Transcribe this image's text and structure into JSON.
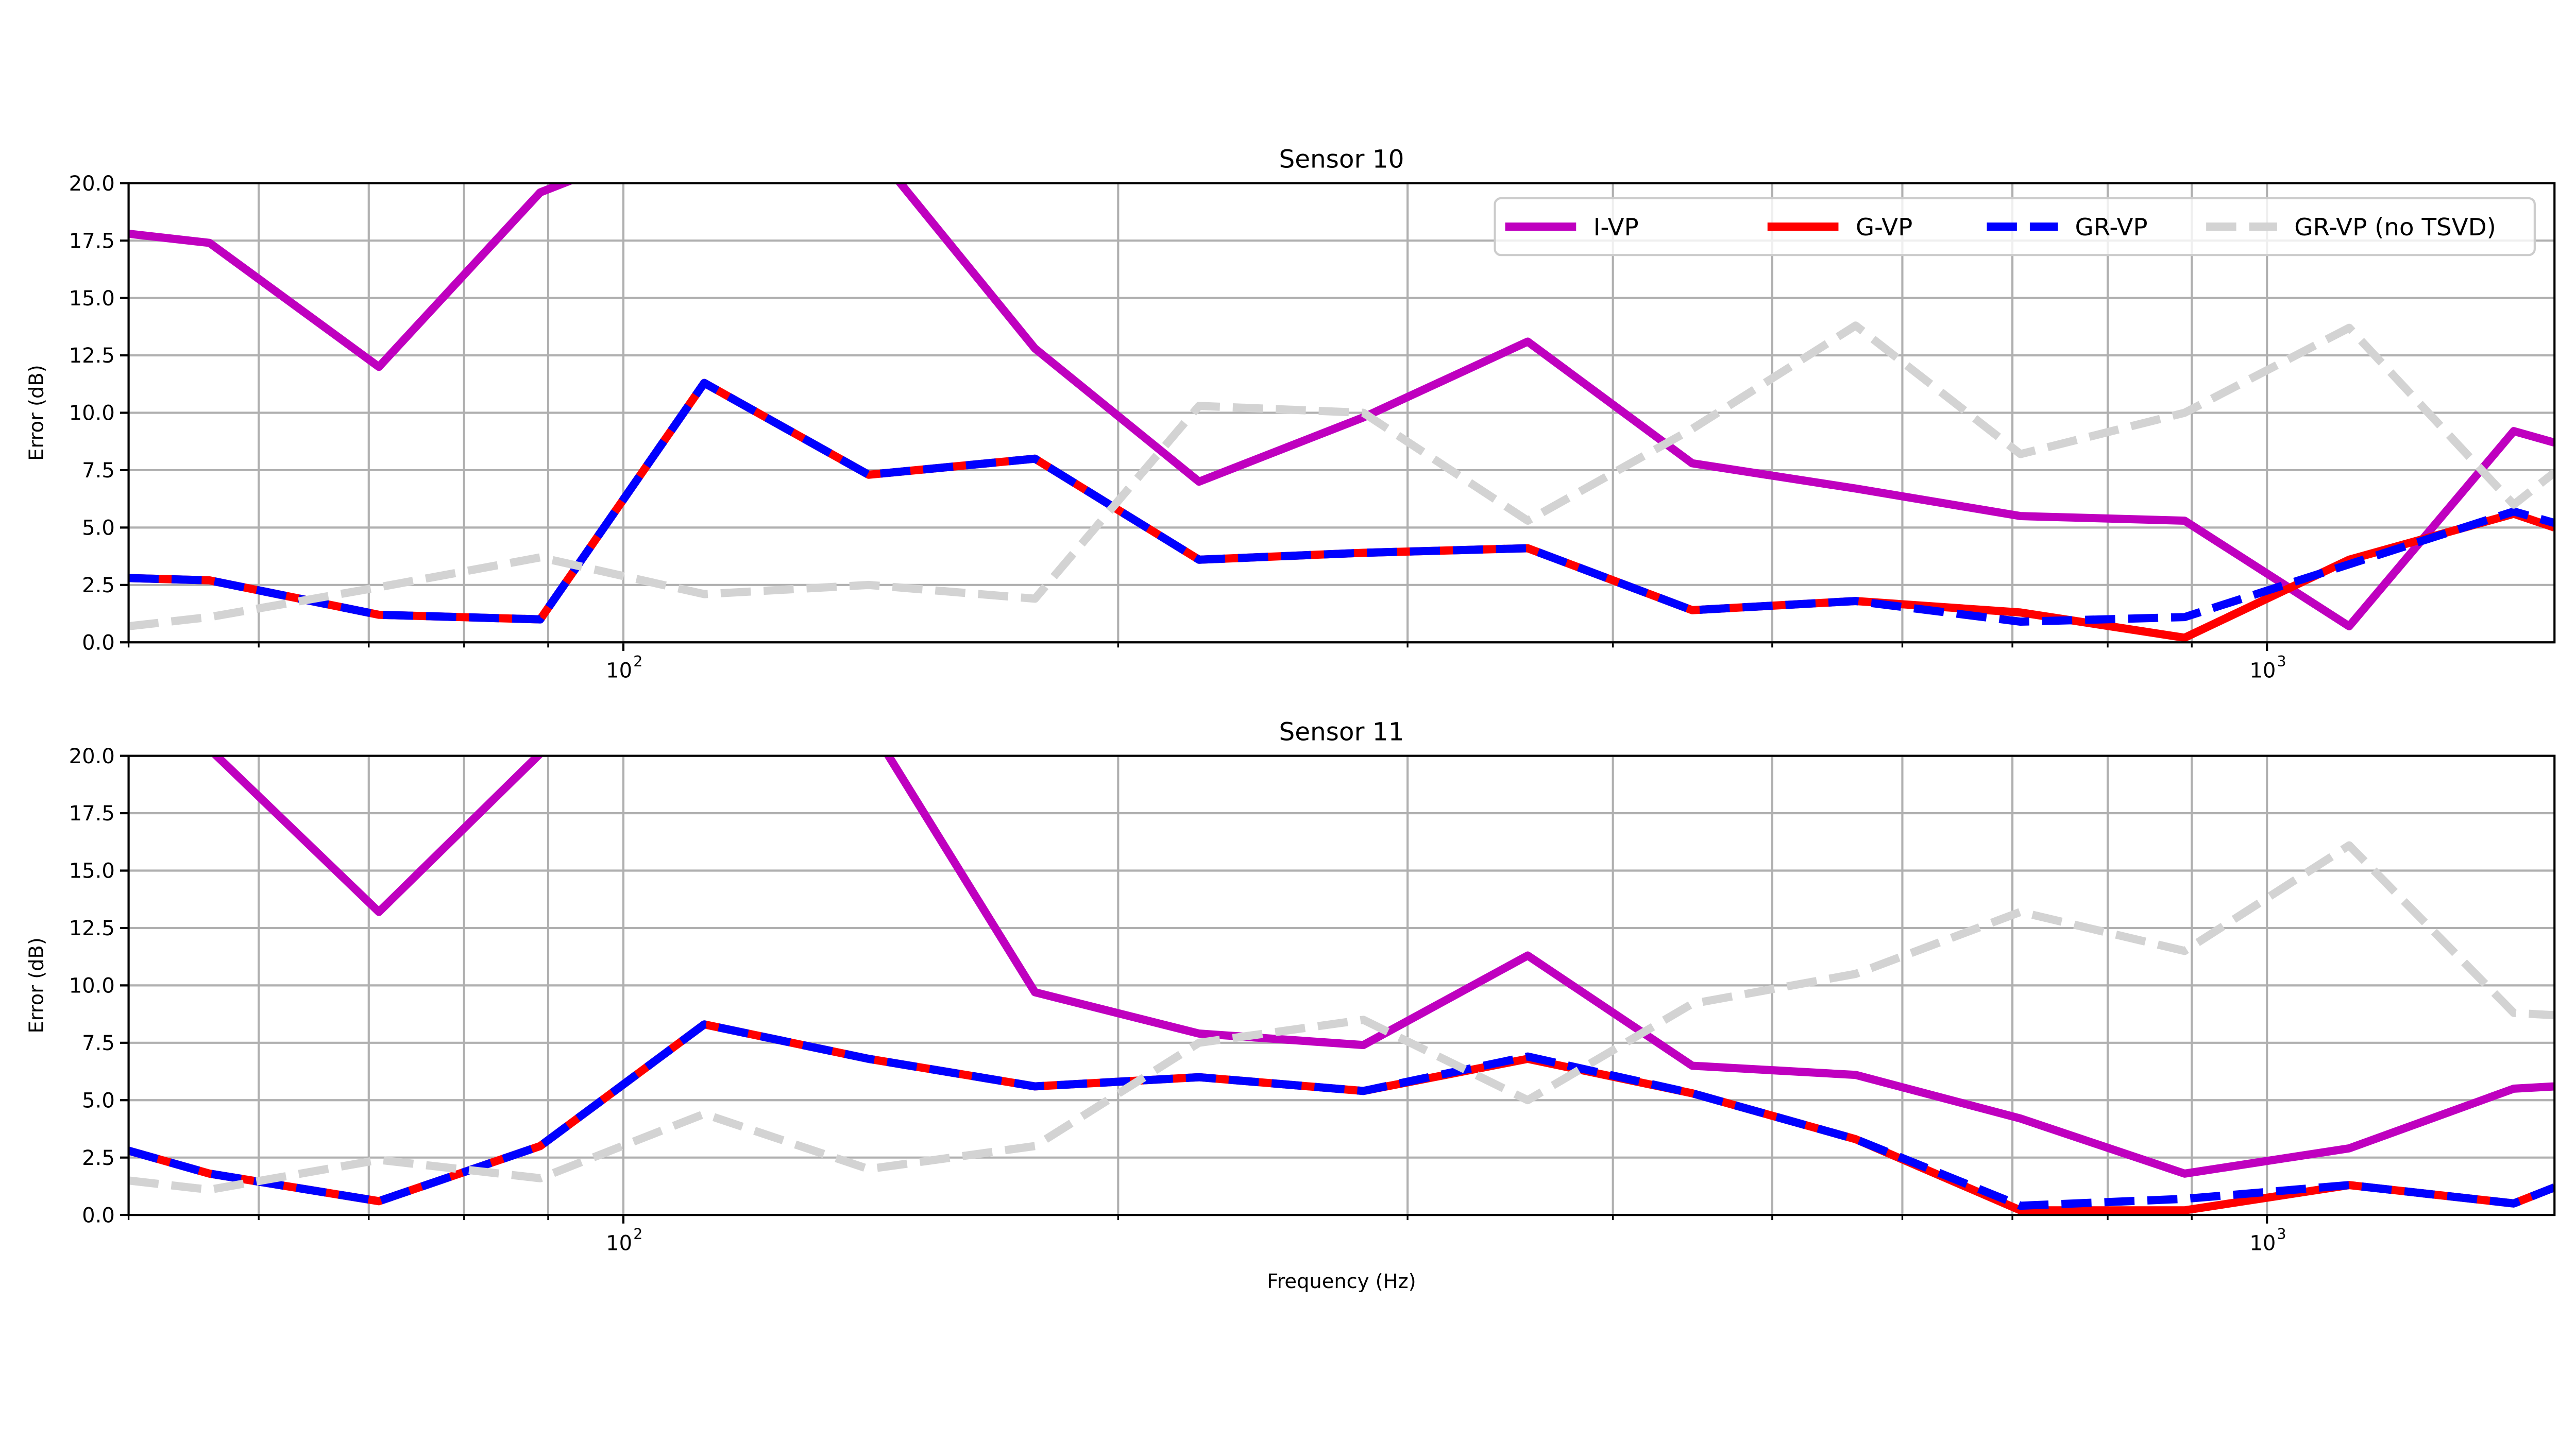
{
  "chart_data": [
    {
      "type": "line",
      "title": "Sensor 10",
      "xlabel": "",
      "ylabel": "Error (dB)",
      "xscale": "log",
      "xlim": [
        50,
        1496
      ],
      "ylim": [
        0,
        20
      ],
      "yticks": [
        "0.0",
        "2.5",
        "5.0",
        "7.5",
        "10.0",
        "12.5",
        "15.0",
        "17.5",
        "20.0"
      ],
      "xticks": [
        {
          "value": 100,
          "base": "10",
          "exp": "2"
        },
        {
          "value": 1000,
          "base": "10",
          "exp": "3"
        }
      ],
      "grid": true,
      "legend": "top-right",
      "x": [
        50,
        56,
        71,
        89,
        112,
        141,
        178,
        224,
        282,
        355,
        447,
        562,
        708,
        891,
        1122,
        1413,
        1496
      ],
      "series": [
        {
          "name": "I-VP",
          "color": "#bf00bf",
          "style": "solid",
          "values": [
            17.8,
            17.4,
            12.0,
            19.6,
            22.4,
            21.7,
            12.8,
            7.0,
            9.8,
            13.1,
            7.8,
            6.7,
            5.5,
            5.3,
            0.7,
            9.2,
            8.7
          ]
        },
        {
          "name": "G-VP",
          "color": "#ff0000",
          "style": "solid",
          "values": [
            2.8,
            2.7,
            1.2,
            1.0,
            11.3,
            7.3,
            8.0,
            3.6,
            3.9,
            4.1,
            1.4,
            1.8,
            1.3,
            0.2,
            3.6,
            5.6,
            5.0
          ]
        },
        {
          "name": "GR-VP",
          "color": "#0000ff",
          "style": "dashed",
          "values": [
            2.8,
            2.7,
            1.2,
            1.0,
            11.3,
            7.3,
            8.0,
            3.6,
            3.9,
            4.1,
            1.4,
            1.8,
            0.9,
            1.1,
            3.4,
            5.7,
            5.2
          ]
        },
        {
          "name": "GR-VP (no TSVD)",
          "color": "#d3d3d3",
          "style": "dashed",
          "values": [
            0.7,
            1.1,
            2.4,
            3.7,
            2.1,
            2.5,
            1.9,
            10.3,
            10.0,
            5.3,
            9.3,
            13.8,
            8.2,
            10.0,
            13.7,
            6.0,
            7.4
          ]
        }
      ]
    },
    {
      "type": "line",
      "title": "Sensor 11",
      "xlabel": "Frequency (Hz)",
      "ylabel": "Error (dB)",
      "xscale": "log",
      "xlim": [
        50,
        1496
      ],
      "ylim": [
        0,
        20
      ],
      "yticks": [
        "0.0",
        "2.5",
        "5.0",
        "7.5",
        "10.0",
        "12.5",
        "15.0",
        "17.5",
        "20.0"
      ],
      "xticks": [
        {
          "value": 100,
          "base": "10",
          "exp": "2"
        },
        {
          "value": 1000,
          "base": "10",
          "exp": "3"
        }
      ],
      "grid": true,
      "legend": "none",
      "x": [
        50,
        56,
        71,
        89,
        112,
        141,
        178,
        224,
        282,
        355,
        447,
        562,
        708,
        891,
        1122,
        1413,
        1496
      ],
      "series": [
        {
          "name": "I-VP",
          "color": "#bf00bf",
          "style": "solid",
          "values": [
            23.8,
            20.3,
            13.2,
            20.1,
            24.0,
            21.4,
            9.7,
            7.9,
            7.4,
            11.3,
            6.5,
            6.1,
            4.2,
            1.8,
            2.9,
            5.5,
            5.6
          ]
        },
        {
          "name": "G-VP",
          "color": "#ff0000",
          "style": "solid",
          "values": [
            2.8,
            1.8,
            0.6,
            3.0,
            8.3,
            6.8,
            5.6,
            6.0,
            5.4,
            6.8,
            5.3,
            3.3,
            0.2,
            0.2,
            1.3,
            0.5,
            1.2
          ]
        },
        {
          "name": "GR-VP",
          "color": "#0000ff",
          "style": "dashed",
          "values": [
            2.8,
            1.8,
            0.6,
            3.0,
            8.3,
            6.8,
            5.6,
            6.0,
            5.4,
            6.9,
            5.3,
            3.3,
            0.4,
            0.7,
            1.3,
            0.5,
            1.2
          ]
        },
        {
          "name": "GR-VP (no TSVD)",
          "color": "#d3d3d3",
          "style": "dashed",
          "values": [
            1.5,
            1.1,
            2.4,
            1.6,
            4.4,
            2.0,
            3.0,
            7.5,
            8.5,
            5.0,
            9.2,
            10.5,
            13.2,
            11.5,
            16.1,
            8.8,
            8.7
          ]
        }
      ]
    }
  ]
}
